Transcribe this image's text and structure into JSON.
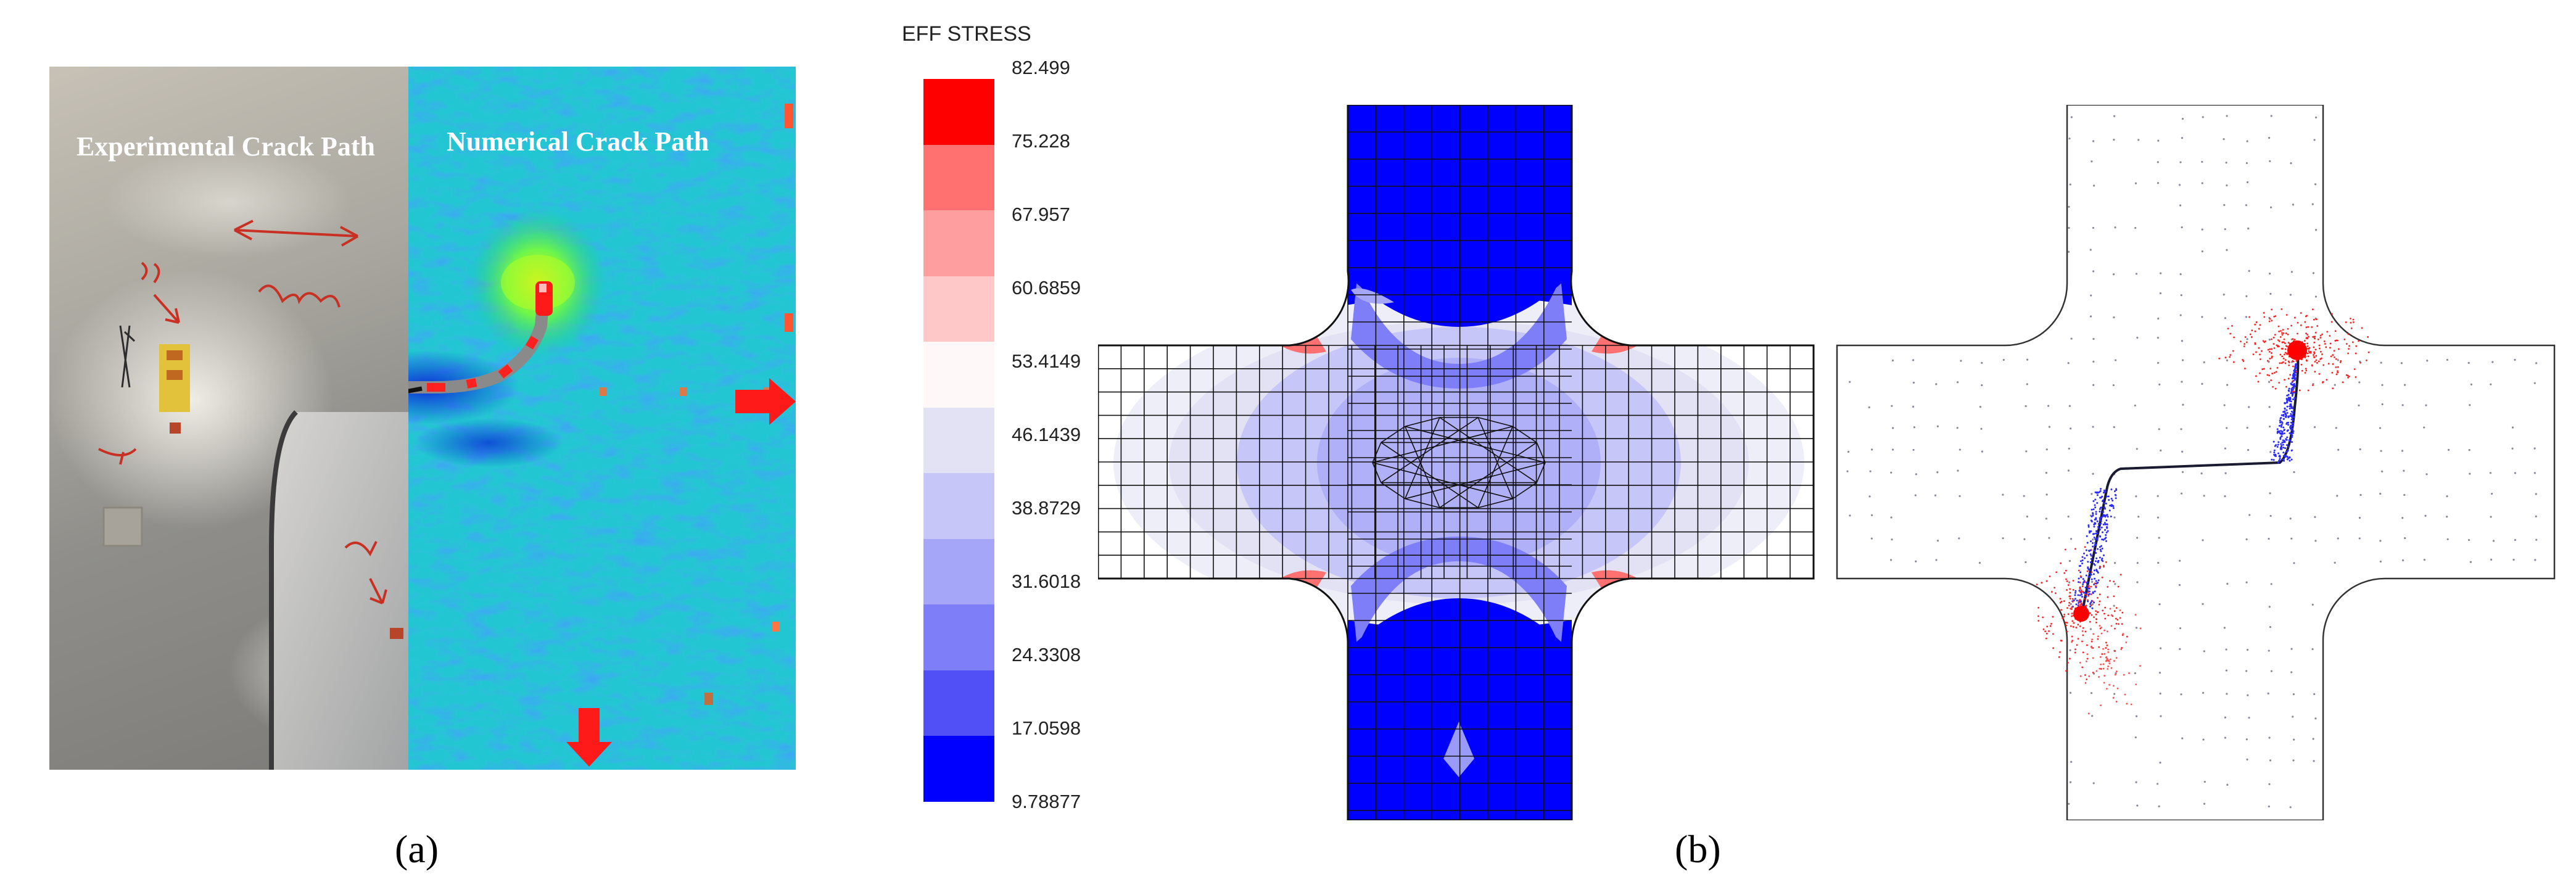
{
  "panel_a": {
    "label_experimental": "Experimental Crack Path",
    "label_numerical": "Numerical Crack Path",
    "caption": "(a)"
  },
  "panel_b": {
    "caption": "(b)",
    "legend": {
      "title": "EFF STRESS",
      "values": [
        "82.499",
        "75.228",
        "67.957",
        "60.6859",
        "53.4149",
        "46.1439",
        "38.8729",
        "31.6018",
        "24.3308",
        "17.0598",
        "9.78877"
      ],
      "colors": [
        "#ff0000",
        "#ff7070",
        "#ff9e9e",
        "#ffc8c8",
        "#fff8f8",
        "#e2e2f4",
        "#c6c6f8",
        "#a6a6f8",
        "#7e7ef8",
        "#5050f6",
        "#0000ff"
      ]
    }
  },
  "colors": {
    "tension_blue": "#1a1aff",
    "crack_red": "#ff1010",
    "mesh_line": "#111111"
  }
}
